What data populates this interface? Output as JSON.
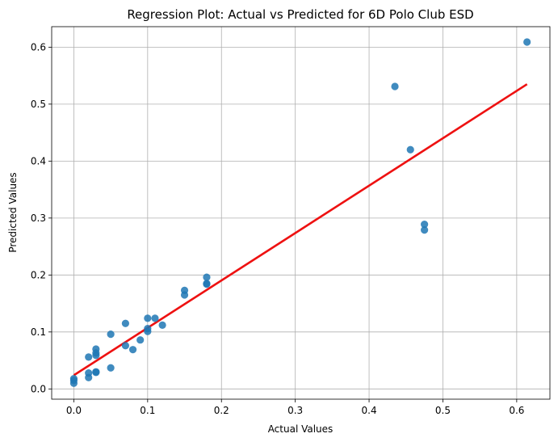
{
  "chart_data": {
    "type": "scatter",
    "title": "Regression Plot: Actual vs Predicted for 6D Polo Club ESD",
    "xlabel": "Actual Values",
    "ylabel": "Predicted Values",
    "xlim": [
      -0.03,
      0.645
    ],
    "ylim": [
      -0.018,
      0.636
    ],
    "xticks": [
      "0.0",
      "0.1",
      "0.2",
      "0.3",
      "0.4",
      "0.5",
      "0.6"
    ],
    "yticks": [
      "0.0",
      "0.1",
      "0.2",
      "0.3",
      "0.4",
      "0.5",
      "0.6"
    ],
    "grid": true,
    "point_color": "#1f77b4",
    "line_color": "#ee1111",
    "points": [
      [
        0.0,
        0.01
      ],
      [
        0.0,
        0.015
      ],
      [
        0.0,
        0.018
      ],
      [
        0.02,
        0.02
      ],
      [
        0.02,
        0.028
      ],
      [
        0.02,
        0.056
      ],
      [
        0.03,
        0.029
      ],
      [
        0.03,
        0.03
      ],
      [
        0.03,
        0.059
      ],
      [
        0.03,
        0.063
      ],
      [
        0.03,
        0.07
      ],
      [
        0.05,
        0.037
      ],
      [
        0.05,
        0.096
      ],
      [
        0.07,
        0.076
      ],
      [
        0.07,
        0.115
      ],
      [
        0.08,
        0.069
      ],
      [
        0.09,
        0.086
      ],
      [
        0.1,
        0.101
      ],
      [
        0.1,
        0.106
      ],
      [
        0.1,
        0.124
      ],
      [
        0.11,
        0.124
      ],
      [
        0.12,
        0.112
      ],
      [
        0.15,
        0.165
      ],
      [
        0.15,
        0.173
      ],
      [
        0.18,
        0.184
      ],
      [
        0.18,
        0.185
      ],
      [
        0.18,
        0.196
      ],
      [
        0.435,
        0.531
      ],
      [
        0.456,
        0.42
      ],
      [
        0.475,
        0.279
      ],
      [
        0.475,
        0.289
      ],
      [
        0.614,
        0.609
      ]
    ],
    "regression_line": {
      "x": [
        0.0,
        0.614
      ],
      "y": [
        0.024,
        0.535
      ]
    }
  }
}
